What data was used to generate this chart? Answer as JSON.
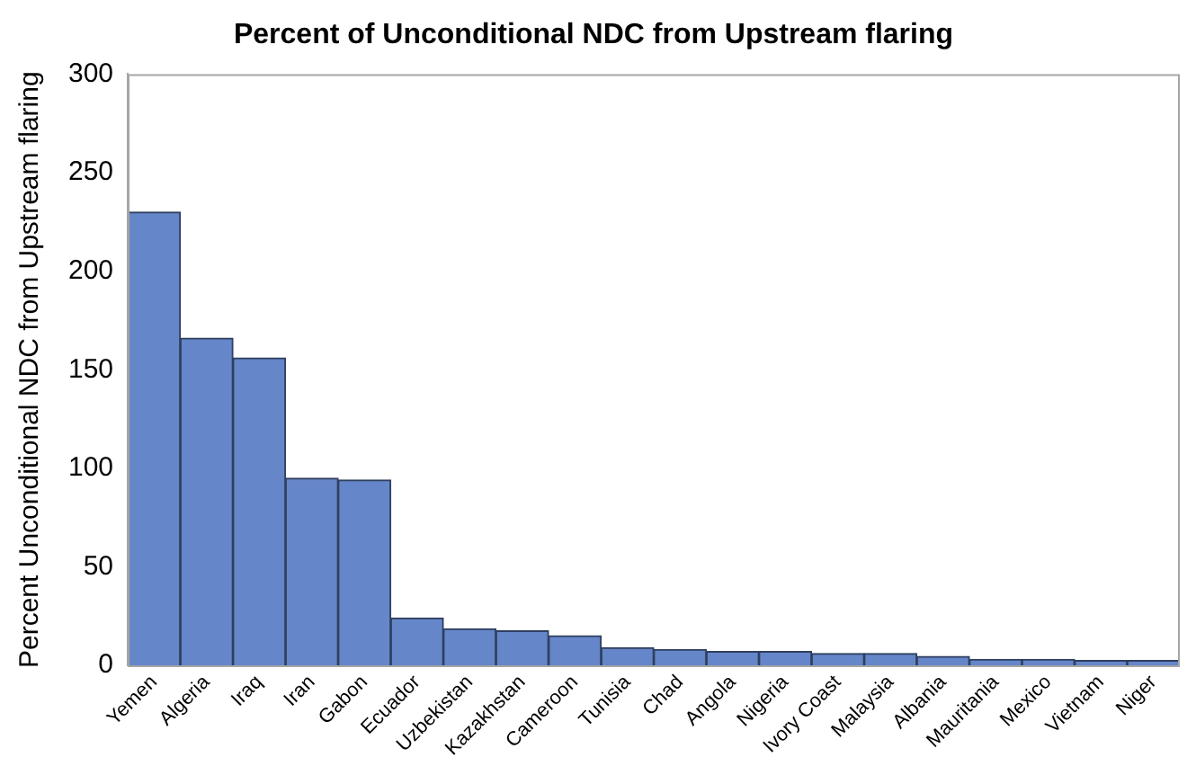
{
  "chart_data": {
    "type": "bar",
    "title": "Percent of Unconditional NDC from Upstream flaring",
    "ylabel": "Percent Unconditional NDC from Upstream flaring",
    "categories": [
      "Yemen",
      "Algeria",
      "Iraq",
      "Iran",
      "Gabon",
      "Ecuador",
      "Uzbekistan",
      "Kazakhstan",
      "Cameroon",
      "Tunisia",
      "Chad",
      "Angola",
      "Nigeria",
      "Ivory Coast",
      "Malaysia",
      "Albania",
      "Mauritania",
      "Mexico",
      "Vietnam",
      "Niger"
    ],
    "values": [
      230,
      166,
      156,
      95,
      94,
      24,
      18.5,
      17.5,
      15,
      9,
      8,
      7,
      7,
      6,
      6,
      4.5,
      3,
      3,
      2.5,
      2.5
    ],
    "color": "#6586c9",
    "ylim": [
      0,
      300
    ],
    "yticks": [
      0,
      50,
      100,
      150,
      200,
      250,
      300
    ],
    "grid": false,
    "legend": false
  }
}
